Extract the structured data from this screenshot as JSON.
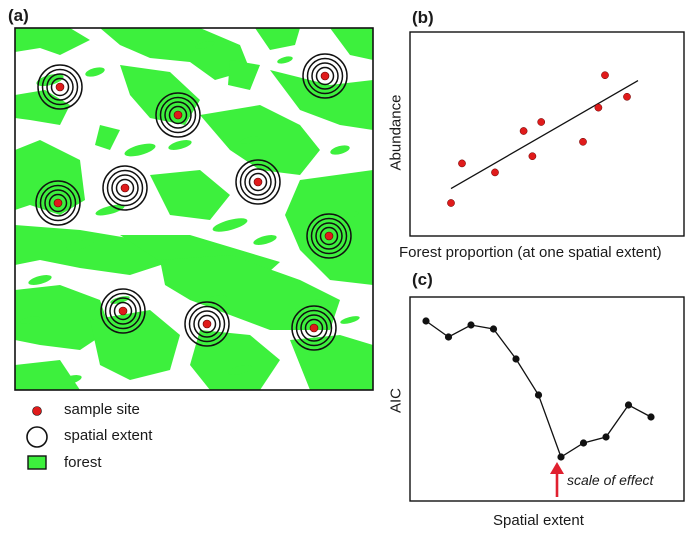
{
  "panels": {
    "a": {
      "label": "(a)"
    },
    "b": {
      "label": "(b)",
      "xlabel": "Forest proportion (at one spatial extent)",
      "ylabel": "Abundance"
    },
    "c": {
      "label": "(c)",
      "xlabel": "Spatial extent",
      "ylabel": "AIC",
      "annotation": "scale of effect"
    }
  },
  "legend": {
    "sample_site": "sample site",
    "spatial_extent": "spatial extent",
    "forest": "forest"
  },
  "colors": {
    "forest": "#3df03d",
    "site": "#e01b1b",
    "arrow": "#e0202f",
    "ink": "#111111"
  },
  "chart_data": [
    {
      "panel": "b",
      "type": "scatter",
      "xlabel": "Forest proportion (at one spatial extent)",
      "ylabel": "Abundance",
      "points": [
        [
          0.05,
          0.1
        ],
        [
          0.1,
          0.32
        ],
        [
          0.25,
          0.27
        ],
        [
          0.38,
          0.5
        ],
        [
          0.42,
          0.36
        ],
        [
          0.46,
          0.55
        ],
        [
          0.65,
          0.44
        ],
        [
          0.72,
          0.63
        ],
        [
          0.75,
          0.81
        ],
        [
          0.85,
          0.69
        ]
      ],
      "trend_line": [
        [
          0.05,
          0.18
        ],
        [
          0.9,
          0.78
        ]
      ]
    },
    {
      "panel": "c",
      "type": "line",
      "xlabel": "Spatial extent",
      "ylabel": "AIC",
      "x": [
        1,
        2,
        3,
        4,
        5,
        6,
        7,
        8,
        9,
        10,
        11
      ],
      "y": [
        0.88,
        0.8,
        0.86,
        0.84,
        0.69,
        0.51,
        0.2,
        0.27,
        0.3,
        0.46,
        0.4
      ],
      "minimum_index": 6
    }
  ]
}
